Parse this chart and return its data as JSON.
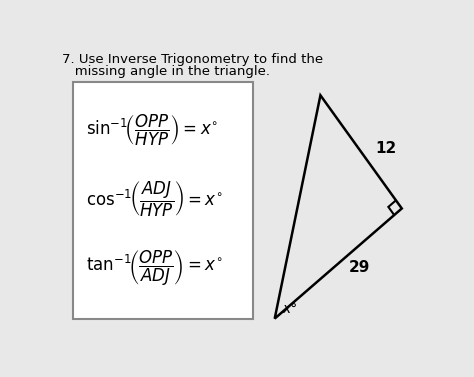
{
  "title_line1": "7. Use Inverse Trigonometry to find the",
  "title_line2": "   missing angle in the triangle.",
  "triangle_label_hyp": "12",
  "triangle_label_opp": "29",
  "triangle_label_angle": "x°",
  "bg_color": "#e8e8e8",
  "box_color": "#ffffff",
  "text_color": "#000000",
  "triangle_color": "#000000",
  "box_edge_color": "#888888",
  "title_fontsize": 9.5,
  "formula_fontsize": 12,
  "label_fontsize": 11
}
